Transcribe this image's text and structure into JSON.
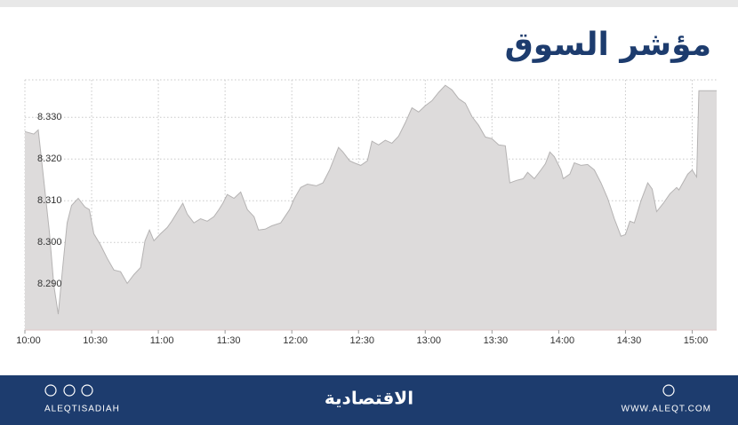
{
  "chart_data": {
    "type": "area",
    "title": "مؤشر السوق",
    "x": [
      600,
      604,
      606,
      608,
      611,
      613,
      615,
      617,
      619,
      621,
      624,
      627,
      629,
      631,
      634,
      637,
      640,
      643,
      646,
      649,
      652,
      654,
      656,
      658,
      661,
      664,
      666,
      669,
      671,
      673,
      676,
      679,
      682,
      685,
      687,
      689,
      691,
      694,
      697,
      700,
      703,
      705,
      708,
      711,
      715,
      719,
      721,
      724,
      727,
      731,
      734,
      737,
      741,
      743,
      746,
      748,
      751,
      754,
      756,
      759,
      762,
      765,
      768,
      771,
      774,
      777,
      780,
      783,
      786,
      789,
      792,
      795,
      798,
      801,
      804,
      807,
      810,
      813,
      816,
      818,
      821,
      824,
      826,
      829,
      832,
      834,
      836,
      838,
      841,
      842,
      845,
      847,
      850,
      853,
      856,
      859,
      862,
      865,
      868,
      870,
      872,
      874,
      877,
      880,
      882,
      884,
      887,
      890,
      893,
      894,
      898,
      900,
      902,
      903,
      911
    ],
    "series": [
      {
        "color": "#dddbdb",
        "values": [
          8.3266,
          8.326,
          8.327,
          8.3174,
          8.3026,
          8.2898,
          8.2828,
          8.294,
          8.3047,
          8.3089,
          8.3106,
          8.3085,
          8.3079,
          8.3021,
          8.2994,
          8.2962,
          8.2934,
          8.293,
          8.2902,
          8.2923,
          8.294,
          8.3004,
          8.303,
          8.3004,
          8.3021,
          8.3036,
          8.3051,
          8.3077,
          8.3094,
          8.3068,
          8.3047,
          8.3057,
          8.3051,
          8.3062,
          8.3077,
          8.3094,
          8.3115,
          8.3106,
          8.3121,
          8.3079,
          8.3062,
          8.303,
          8.3032,
          8.304,
          8.3047,
          8.3079,
          8.3104,
          8.3132,
          8.314,
          8.3136,
          8.3143,
          8.3174,
          8.3228,
          8.3217,
          8.3196,
          8.3191,
          8.3185,
          8.3196,
          8.3243,
          8.3234,
          8.3245,
          8.3238,
          8.3255,
          8.3287,
          8.3323,
          8.3313,
          8.3328,
          8.334,
          8.336,
          8.3377,
          8.3366,
          8.3345,
          8.3334,
          8.3302,
          8.3281,
          8.3253,
          8.3249,
          8.3234,
          8.3232,
          8.3143,
          8.3149,
          8.3153,
          8.3168,
          8.3153,
          8.3174,
          8.3189,
          8.3217,
          8.3206,
          8.3174,
          8.3153,
          8.3164,
          8.3191,
          8.3185,
          8.3187,
          8.3174,
          8.3143,
          8.3106,
          8.3057,
          8.3015,
          8.3019,
          8.3051,
          8.3047,
          8.31,
          8.3143,
          8.3128,
          8.3074,
          8.3094,
          8.3117,
          8.3132,
          8.3126,
          8.3164,
          8.3174,
          8.3157,
          8.3364,
          8.3364
        ]
      }
    ],
    "xlim": [
      600,
      911
    ],
    "xticks": [
      {
        "value": 600,
        "label": "10:00"
      },
      {
        "value": 630,
        "label": "10:30"
      },
      {
        "value": 660,
        "label": "11:00"
      },
      {
        "value": 690,
        "label": "11:30"
      },
      {
        "value": 720,
        "label": "12:00"
      },
      {
        "value": 750,
        "label": "12:30"
      },
      {
        "value": 780,
        "label": "13:00"
      },
      {
        "value": 810,
        "label": "13:30"
      },
      {
        "value": 840,
        "label": "14:00"
      },
      {
        "value": 870,
        "label": "14:30"
      },
      {
        "value": 900,
        "label": "15:00"
      }
    ],
    "ylim": [
      8.279,
      8.339
    ],
    "yticks": [
      {
        "value": 8.29,
        "label": "8.290"
      },
      {
        "value": 8.3,
        "label": "8.300"
      },
      {
        "value": 8.31,
        "label": "8.310"
      },
      {
        "value": 8.32,
        "label": "8.320"
      },
      {
        "value": 8.33,
        "label": "8.330"
      }
    ],
    "grid": true
  },
  "footer": {
    "left": "ALEQTISADIAH",
    "center": "الاقتصادية",
    "right": "WWW.ALEQT.COM"
  }
}
